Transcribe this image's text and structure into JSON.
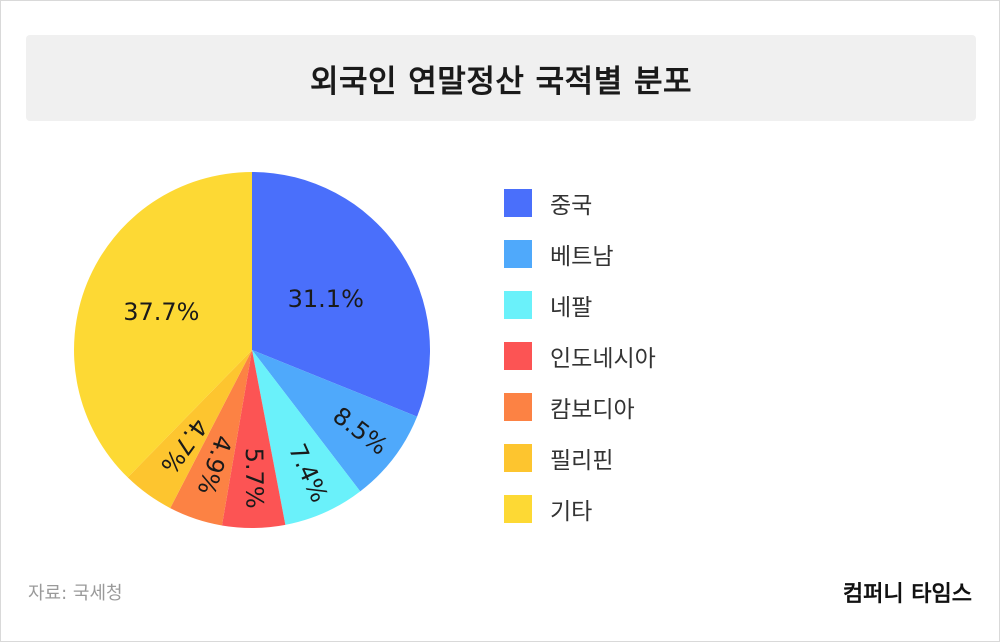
{
  "title": "외국인 연말정산 국적별 분포",
  "chart_data": {
    "type": "pie",
    "categories": [
      "중국",
      "베트남",
      "네팔",
      "인도네시아",
      "캄보디아",
      "필리핀",
      "기타"
    ],
    "values": [
      31.1,
      8.5,
      7.4,
      5.7,
      4.9,
      4.7,
      37.7
    ],
    "labels": [
      "31.1%",
      "8.5%",
      "7.4%",
      "5.7%",
      "4.9%",
      "4.7%",
      "37.7%"
    ],
    "colors": [
      "#4a6ffb",
      "#4fa9fb",
      "#6af1fa",
      "#fc5454",
      "#fc8244",
      "#fdc52f",
      "#fdd934"
    ],
    "legend_position": "right"
  },
  "source": "자료: 국세청",
  "brand": "컴퍼니 타임스"
}
